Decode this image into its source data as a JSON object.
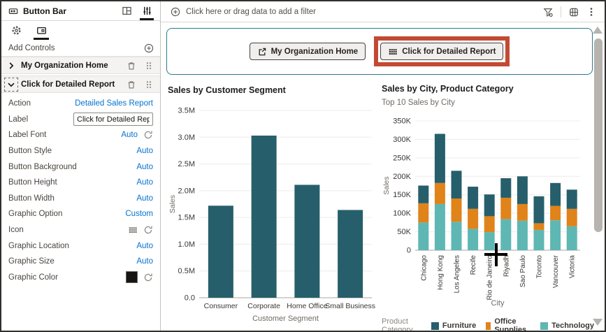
{
  "left_panel": {
    "title": "Button Bar",
    "add_controls_label": "Add Controls",
    "controls": [
      {
        "label": "My Organization Home",
        "state": "collapsed",
        "focused": false
      },
      {
        "label": "Click for Detailed Report",
        "state": "expanded",
        "focused": true
      }
    ],
    "properties": [
      {
        "label": "Action",
        "type": "link",
        "value": "Detailed Sales Report"
      },
      {
        "label": "Label",
        "type": "input",
        "value": "Click for Detailed Report"
      },
      {
        "label": "Label Font",
        "type": "link-reset",
        "value": "Auto"
      },
      {
        "label": "Button Style",
        "type": "link",
        "value": "Auto"
      },
      {
        "label": "Button Background",
        "type": "link",
        "value": "Auto"
      },
      {
        "label": "Button Height",
        "type": "link",
        "value": "Auto"
      },
      {
        "label": "Button Width",
        "type": "link",
        "value": "Auto"
      },
      {
        "label": "Graphic Option",
        "type": "link",
        "value": "Custom"
      },
      {
        "label": "Icon",
        "type": "icon-reset",
        "value": "grid-icon"
      },
      {
        "label": "Graphic Location",
        "type": "link",
        "value": "Auto"
      },
      {
        "label": "Graphic Size",
        "type": "link",
        "value": "Auto"
      },
      {
        "label": "Graphic Color",
        "type": "swatch-reset",
        "value": "#161513"
      }
    ]
  },
  "filter_bar": {
    "placeholder": "Click here or drag data to add a filter"
  },
  "button_bar": {
    "buttons": [
      {
        "label": "My Organization Home",
        "icon": "open-in-new-icon",
        "highlighted": false
      },
      {
        "label": "Click for Detailed Report",
        "icon": "grid-icon",
        "highlighted": true
      }
    ]
  },
  "chart_data": [
    {
      "type": "bar",
      "title": "Sales by Customer Segment",
      "categories": [
        "Consumer",
        "Corporate",
        "Home Office",
        "Small Business"
      ],
      "values": [
        1720000,
        3030000,
        2110000,
        1640000
      ],
      "xlabel": "Customer Segment",
      "ylabel": "Sales",
      "ylim": [
        0,
        3500000
      ],
      "ytick_labels": [
        "0.0",
        "0.5M",
        "1.0M",
        "1.5M",
        "2.0M",
        "2.5M",
        "3.0M",
        "3.5M"
      ],
      "bar_color": "#265f6b",
      "grid": true,
      "legend": "none"
    },
    {
      "type": "bar",
      "stacked": true,
      "title": "Sales by City, Product Category",
      "subtitle": "Top 10 Sales by City",
      "categories": [
        "Chicago",
        "Hong Kong",
        "Los Angeles",
        "Recife",
        "Rio de Janeiro",
        "Riyadh",
        "Sao Paulo",
        "Toronto",
        "Vancouver",
        "Victoria"
      ],
      "series": [
        {
          "name": "Technology",
          "color": "#5fb7b3",
          "values": [
            75000,
            125000,
            77000,
            58000,
            49000,
            84000,
            80000,
            55000,
            81000,
            65000
          ]
        },
        {
          "name": "Office Supplies",
          "color": "#e0831b",
          "values": [
            52000,
            57000,
            63000,
            54000,
            43000,
            58000,
            45000,
            18000,
            39000,
            47000
          ]
        },
        {
          "name": "Furniture",
          "color": "#265f6b",
          "values": [
            48000,
            133000,
            75000,
            60000,
            59000,
            53000,
            75000,
            73000,
            62000,
            52000
          ]
        }
      ],
      "legend_title": "Product Category",
      "legend_order": [
        "Furniture",
        "Office Supplies",
        "Technology"
      ],
      "xlabel": "City",
      "ylabel": "Sales",
      "ylim": [
        0,
        350000
      ],
      "ytick_labels": [
        "0",
        "50K",
        "100K",
        "150K",
        "200K",
        "250K",
        "300K",
        "350K"
      ],
      "grid": true,
      "legend": "bottom"
    }
  ],
  "colors": {
    "accent_blue": "#0572ce",
    "selection_teal": "#2b7c8a",
    "annotation_red": "#c24a33",
    "furniture": "#265f6b",
    "office_supplies": "#e0831b",
    "technology": "#5fb7b3"
  }
}
